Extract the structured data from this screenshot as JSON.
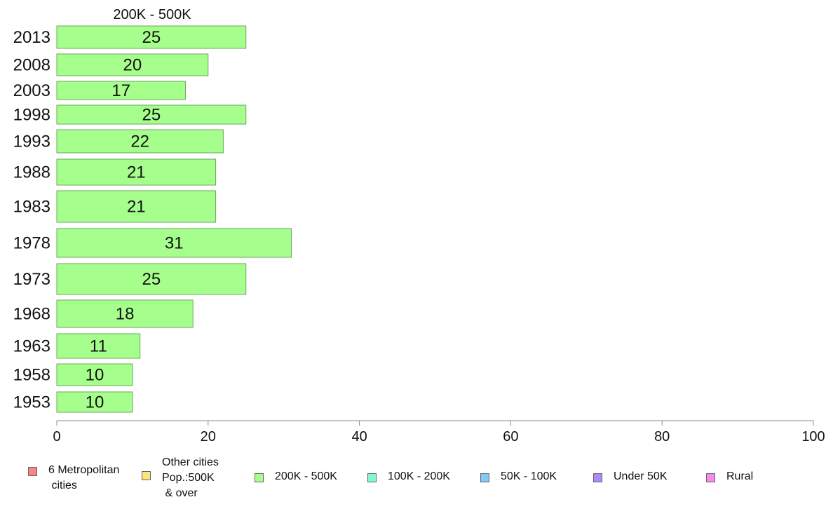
{
  "chart_data": {
    "type": "bar",
    "orientation": "horizontal",
    "panel_title": "200K - 500K",
    "categories": [
      "2013",
      "2008",
      "2003",
      "1998",
      "1993",
      "1988",
      "1983",
      "1978",
      "1973",
      "1968",
      "1963",
      "1958",
      "1953"
    ],
    "values": [
      25,
      20,
      17,
      25,
      22,
      21,
      21,
      31,
      25,
      18,
      11,
      10,
      10
    ],
    "data_labels": [
      "25",
      "20",
      "17",
      "25",
      "22",
      "21",
      "21",
      "31",
      "25",
      "18",
      "11",
      "10",
      "10"
    ],
    "bar_color": "#a6ff8c",
    "xlim": [
      0,
      100
    ],
    "x_ticks": [
      0,
      20,
      40,
      60,
      80,
      100
    ],
    "grid": false
  },
  "legend": {
    "items": [
      {
        "label": "6 Metropolitan\n cities",
        "color": "#f7877f"
      },
      {
        "label": "Other cities\nPop.:500K\n & over",
        "color": "#fbe57f"
      },
      {
        "label": "200K - 500K",
        "color": "#a6ff8c"
      },
      {
        "label": "100K - 200K",
        "color": "#84f7d0"
      },
      {
        "label": "50K - 100K",
        "color": "#84c8f7"
      },
      {
        "label": "Under 50K",
        "color": "#ae8af7"
      },
      {
        "label": "Rural",
        "color": "#f78af0"
      }
    ]
  }
}
